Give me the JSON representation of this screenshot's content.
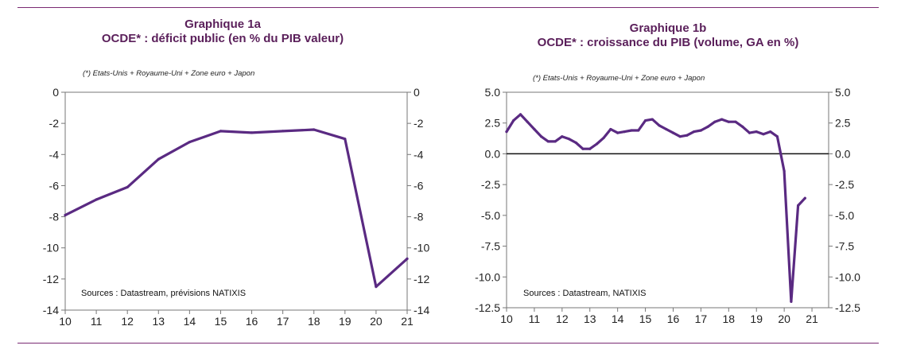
{
  "line_color": "#5a2a82",
  "rule_color": "#7a2a72",
  "chart_data": [
    {
      "type": "line",
      "title": "Graphique 1a",
      "subtitle": "OCDE* : déficit public (en % du PIB valeur)",
      "note": "(*) Etats-Unis + Royaume-Uni + Zone euro + Japon",
      "source": "Sources : Datastream, prévisions NATIXIS",
      "xlim": [
        10,
        21
      ],
      "ylim": [
        -14,
        0
      ],
      "x_ticks": [
        "10",
        "11",
        "12",
        "13",
        "14",
        "15",
        "16",
        "17",
        "18",
        "19",
        "20",
        "21"
      ],
      "y_ticks": [
        "0",
        "-2",
        "-4",
        "-6",
        "-8",
        "-10",
        "-12",
        "-14"
      ],
      "grid": false,
      "series": [
        {
          "x": [
            10,
            11,
            12,
            13,
            14,
            15,
            16,
            17,
            18,
            19,
            20,
            21
          ],
          "y": [
            -7.9,
            -6.9,
            -6.1,
            -4.3,
            -3.2,
            -2.5,
            -2.6,
            -2.5,
            -2.4,
            -3.0,
            -12.5,
            -10.7
          ]
        }
      ]
    },
    {
      "type": "line",
      "title": "Graphique 1b",
      "subtitle": "OCDE* : croissance du PIB (volume, GA en %)",
      "note": "(*) Etats-Unis + Royaume-Uni + Zone euro + Japon",
      "source": "Sources : Datastream, NATIXIS",
      "xlim": [
        10,
        21.6
      ],
      "ylim": [
        -12.5,
        5.0
      ],
      "x_ticks": [
        "10",
        "11",
        "12",
        "13",
        "14",
        "15",
        "16",
        "17",
        "18",
        "19",
        "20",
        "21"
      ],
      "y_ticks": [
        "5.0",
        "2.5",
        "0.0",
        "-2.5",
        "-5.0",
        "-7.5",
        "-10.0",
        "-12.5"
      ],
      "zero_line": true,
      "grid": false,
      "series": [
        {
          "x": [
            10.0,
            10.25,
            10.5,
            10.75,
            11.0,
            11.25,
            11.5,
            11.75,
            12.0,
            12.25,
            12.5,
            12.75,
            13.0,
            13.25,
            13.5,
            13.75,
            14.0,
            14.25,
            14.5,
            14.75,
            15.0,
            15.25,
            15.5,
            15.75,
            16.0,
            16.25,
            16.5,
            16.75,
            17.0,
            17.25,
            17.5,
            17.75,
            18.0,
            18.25,
            18.5,
            18.75,
            19.0,
            19.25,
            19.5,
            19.75,
            20.0,
            20.25,
            20.5,
            20.75
          ],
          "y": [
            1.8,
            2.7,
            3.2,
            2.6,
            2.0,
            1.4,
            1.0,
            1.0,
            1.4,
            1.2,
            0.9,
            0.4,
            0.4,
            0.8,
            1.3,
            2.0,
            1.7,
            1.8,
            1.9,
            1.9,
            2.7,
            2.8,
            2.3,
            2.0,
            1.7,
            1.4,
            1.5,
            1.8,
            1.9,
            2.2,
            2.6,
            2.8,
            2.6,
            2.6,
            2.2,
            1.7,
            1.8,
            1.6,
            1.8,
            1.4,
            -1.4,
            -12.0,
            -4.2,
            -3.6
          ]
        }
      ]
    }
  ]
}
